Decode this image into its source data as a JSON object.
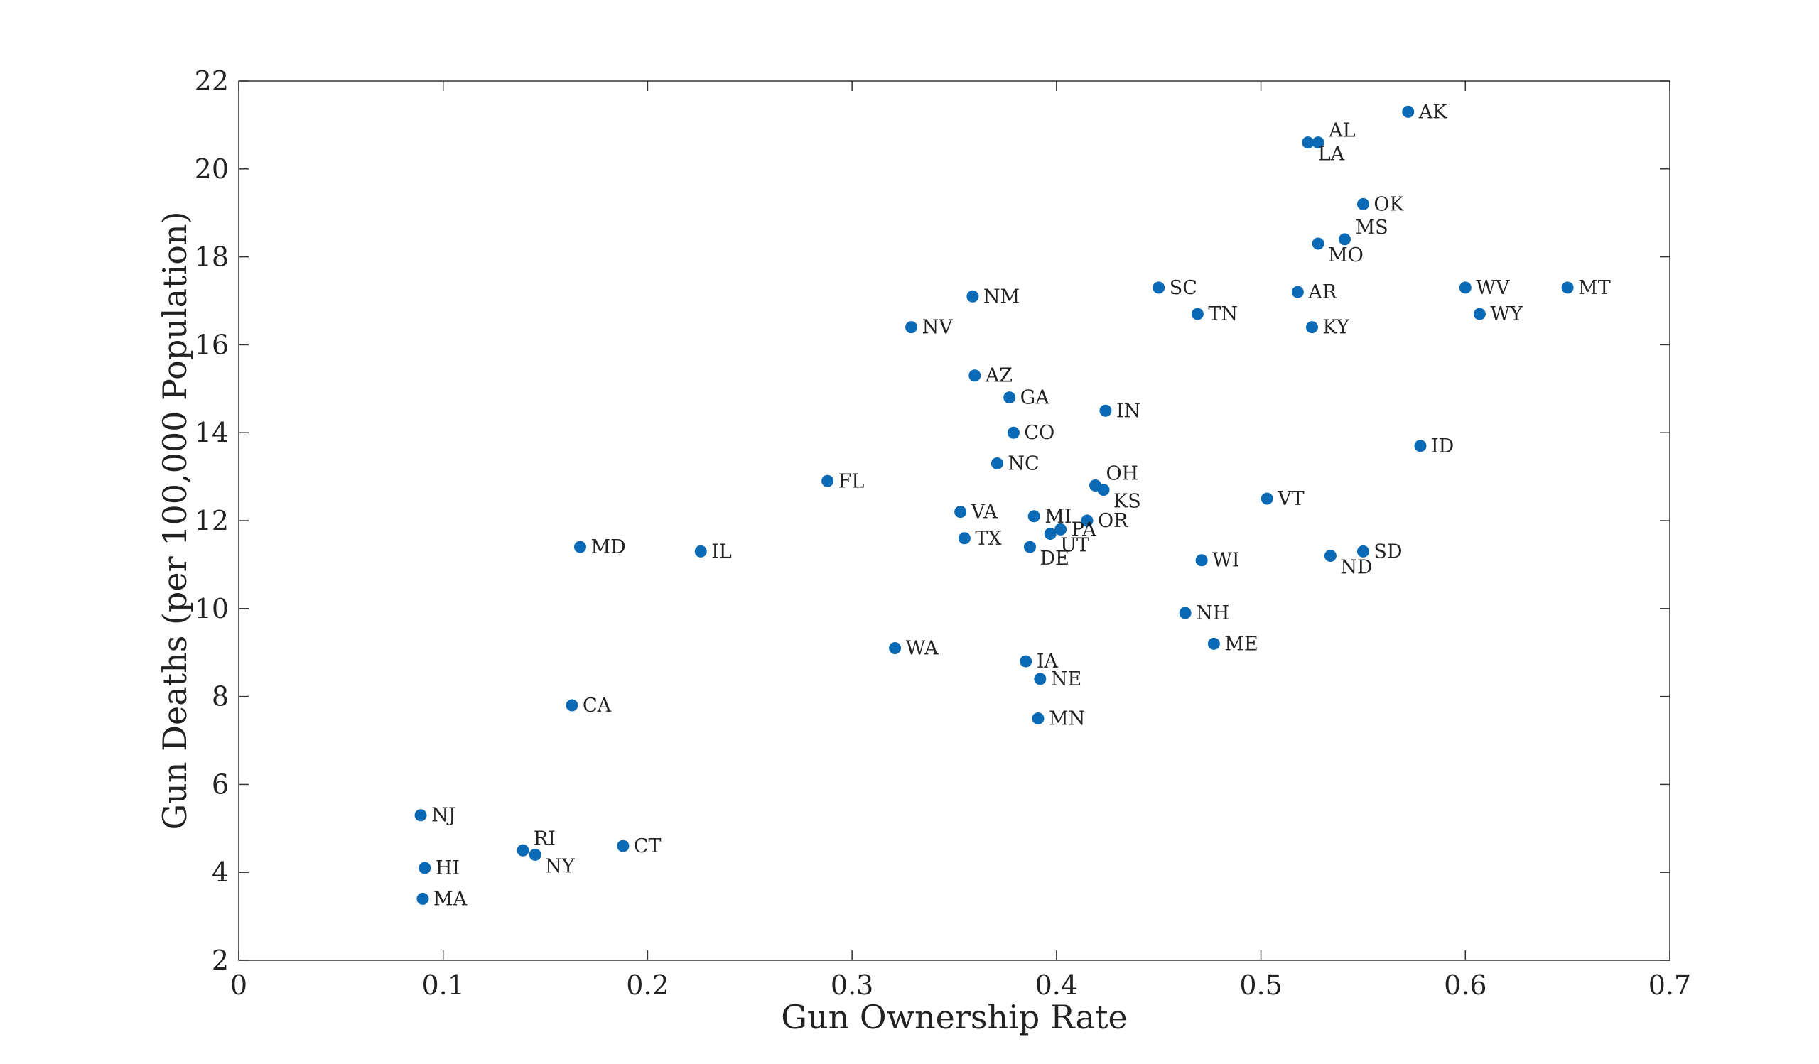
{
  "chart_data": {
    "type": "scatter",
    "title": "",
    "xlabel": "Gun Ownership Rate",
    "ylabel": "Gun Deaths (per 100,000 Population)",
    "xlim": [
      0,
      0.7
    ],
    "ylim": [
      2,
      22
    ],
    "x_ticks": [
      "0",
      "0.1",
      "0.2",
      "0.3",
      "0.4",
      "0.5",
      "0.6",
      "0.7"
    ],
    "y_ticks": [
      "2",
      "4",
      "6",
      "8",
      "10",
      "12",
      "14",
      "16",
      "18",
      "20",
      "22"
    ],
    "grid": false,
    "marker_color": "#0a6ab5",
    "points": [
      {
        "label": "AK",
        "x": 0.572,
        "y": 21.3,
        "label_pos": "right"
      },
      {
        "label": "AL",
        "x": 0.528,
        "y": 20.6,
        "label_pos": "upper-right"
      },
      {
        "label": "LA",
        "x": 0.523,
        "y": 20.6,
        "label_pos": "below-right"
      },
      {
        "label": "OK",
        "x": 0.55,
        "y": 19.2,
        "label_pos": "right"
      },
      {
        "label": "MS",
        "x": 0.541,
        "y": 18.4,
        "label_pos": "upper-right"
      },
      {
        "label": "MO",
        "x": 0.528,
        "y": 18.3,
        "label_pos": "below-right"
      },
      {
        "label": "SC",
        "x": 0.45,
        "y": 17.3,
        "label_pos": "right"
      },
      {
        "label": "AR",
        "x": 0.518,
        "y": 17.2,
        "label_pos": "right"
      },
      {
        "label": "WV",
        "x": 0.6,
        "y": 17.3,
        "label_pos": "right"
      },
      {
        "label": "MT",
        "x": 0.65,
        "y": 17.3,
        "label_pos": "right"
      },
      {
        "label": "NM",
        "x": 0.359,
        "y": 17.1,
        "label_pos": "right"
      },
      {
        "label": "TN",
        "x": 0.469,
        "y": 16.7,
        "label_pos": "right"
      },
      {
        "label": "WY",
        "x": 0.607,
        "y": 16.7,
        "label_pos": "right"
      },
      {
        "label": "NV",
        "x": 0.329,
        "y": 16.4,
        "label_pos": "right"
      },
      {
        "label": "KY",
        "x": 0.525,
        "y": 16.4,
        "label_pos": "right"
      },
      {
        "label": "AZ",
        "x": 0.36,
        "y": 15.3,
        "label_pos": "right"
      },
      {
        "label": "GA",
        "x": 0.377,
        "y": 14.8,
        "label_pos": "right"
      },
      {
        "label": "IN",
        "x": 0.424,
        "y": 14.5,
        "label_pos": "right"
      },
      {
        "label": "CO",
        "x": 0.379,
        "y": 14.0,
        "label_pos": "right"
      },
      {
        "label": "ID",
        "x": 0.578,
        "y": 13.7,
        "label_pos": "right"
      },
      {
        "label": "NC",
        "x": 0.371,
        "y": 13.3,
        "label_pos": "right"
      },
      {
        "label": "FL",
        "x": 0.288,
        "y": 12.9,
        "label_pos": "right"
      },
      {
        "label": "OH",
        "x": 0.419,
        "y": 12.8,
        "label_pos": "upper-right"
      },
      {
        "label": "KS",
        "x": 0.423,
        "y": 12.7,
        "label_pos": "below-right"
      },
      {
        "label": "VT",
        "x": 0.503,
        "y": 12.5,
        "label_pos": "right"
      },
      {
        "label": "VA",
        "x": 0.353,
        "y": 12.2,
        "label_pos": "right"
      },
      {
        "label": "MI",
        "x": 0.389,
        "y": 12.1,
        "label_pos": "right"
      },
      {
        "label": "OR",
        "x": 0.415,
        "y": 12.0,
        "label_pos": "right"
      },
      {
        "label": "PA",
        "x": 0.402,
        "y": 11.8,
        "label_pos": "right"
      },
      {
        "label": "UT",
        "x": 0.397,
        "y": 11.7,
        "label_pos": "below-right"
      },
      {
        "label": "TX",
        "x": 0.355,
        "y": 11.6,
        "label_pos": "right"
      },
      {
        "label": "DE",
        "x": 0.387,
        "y": 11.4,
        "label_pos": "below-right"
      },
      {
        "label": "MD",
        "x": 0.167,
        "y": 11.4,
        "label_pos": "right"
      },
      {
        "label": "IL",
        "x": 0.226,
        "y": 11.3,
        "label_pos": "right"
      },
      {
        "label": "SD",
        "x": 0.55,
        "y": 11.3,
        "label_pos": "right"
      },
      {
        "label": "ND",
        "x": 0.534,
        "y": 11.2,
        "label_pos": "below-right"
      },
      {
        "label": "WI",
        "x": 0.471,
        "y": 11.1,
        "label_pos": "right"
      },
      {
        "label": "NH",
        "x": 0.463,
        "y": 9.9,
        "label_pos": "right"
      },
      {
        "label": "ME",
        "x": 0.477,
        "y": 9.2,
        "label_pos": "right"
      },
      {
        "label": "WA",
        "x": 0.321,
        "y": 9.1,
        "label_pos": "right"
      },
      {
        "label": "IA",
        "x": 0.385,
        "y": 8.8,
        "label_pos": "right"
      },
      {
        "label": "NE",
        "x": 0.392,
        "y": 8.4,
        "label_pos": "right"
      },
      {
        "label": "CA",
        "x": 0.163,
        "y": 7.8,
        "label_pos": "right"
      },
      {
        "label": "MN",
        "x": 0.391,
        "y": 7.5,
        "label_pos": "right"
      },
      {
        "label": "NJ",
        "x": 0.089,
        "y": 5.3,
        "label_pos": "right"
      },
      {
        "label": "CT",
        "x": 0.188,
        "y": 4.6,
        "label_pos": "right"
      },
      {
        "label": "RI",
        "x": 0.139,
        "y": 4.5,
        "label_pos": "upper-right"
      },
      {
        "label": "NY",
        "x": 0.145,
        "y": 4.4,
        "label_pos": "below-right"
      },
      {
        "label": "HI",
        "x": 0.091,
        "y": 4.1,
        "label_pos": "right"
      },
      {
        "label": "MA",
        "x": 0.09,
        "y": 3.4,
        "label_pos": "right"
      }
    ]
  }
}
